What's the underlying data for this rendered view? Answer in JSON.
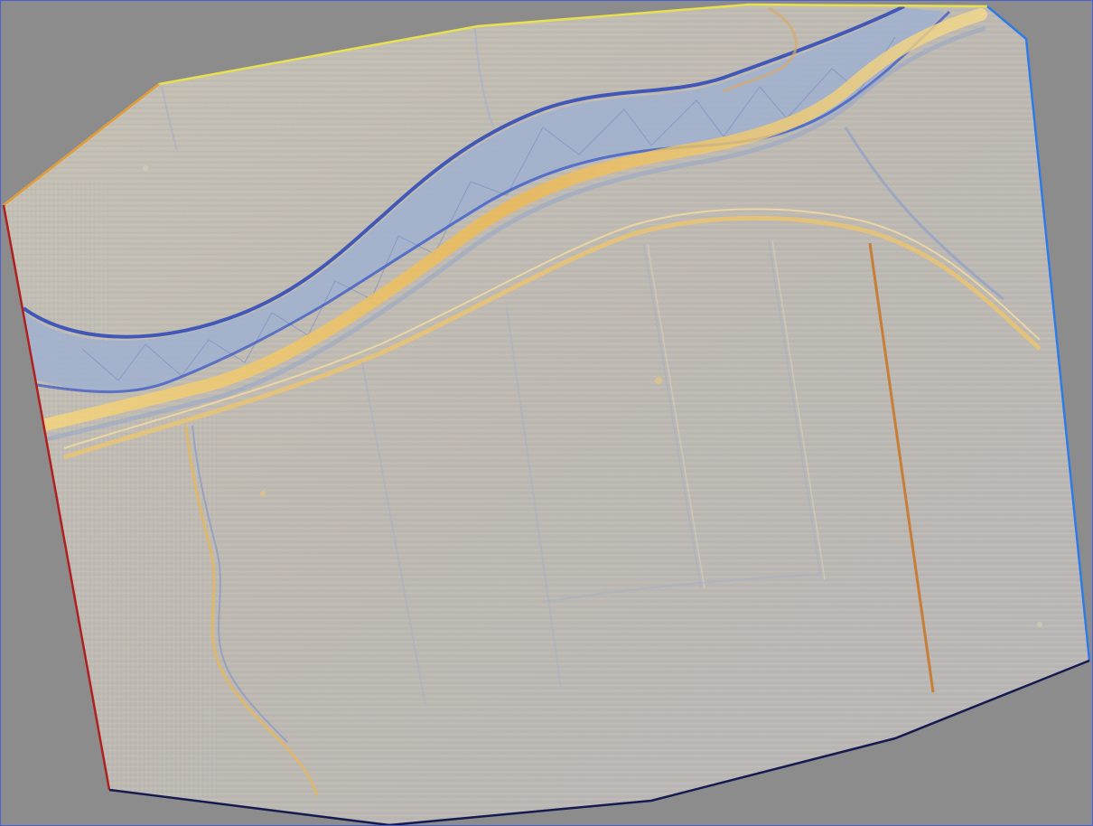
{
  "view": {
    "background_color": "#8c8c8c",
    "frame_color": "#4a5fd0"
  },
  "map": {
    "kind": "shaded-relief-elevation-model",
    "hillshade_base_color": "#c2bdb3",
    "highlight_color": "#f2c460",
    "shadow_color": "#2f4fc8",
    "boundary_colors": {
      "top": "#e8e050",
      "right": "#2e7be8",
      "bottom": "#151a50",
      "left": "#b02020"
    },
    "features": [
      {
        "name": "upper-channel",
        "relief": "incised"
      },
      {
        "name": "embankment-ridge",
        "relief": "raised"
      },
      {
        "name": "track",
        "relief": "linear"
      },
      {
        "name": "field-boundary-ditch",
        "relief": "linear"
      }
    ]
  }
}
